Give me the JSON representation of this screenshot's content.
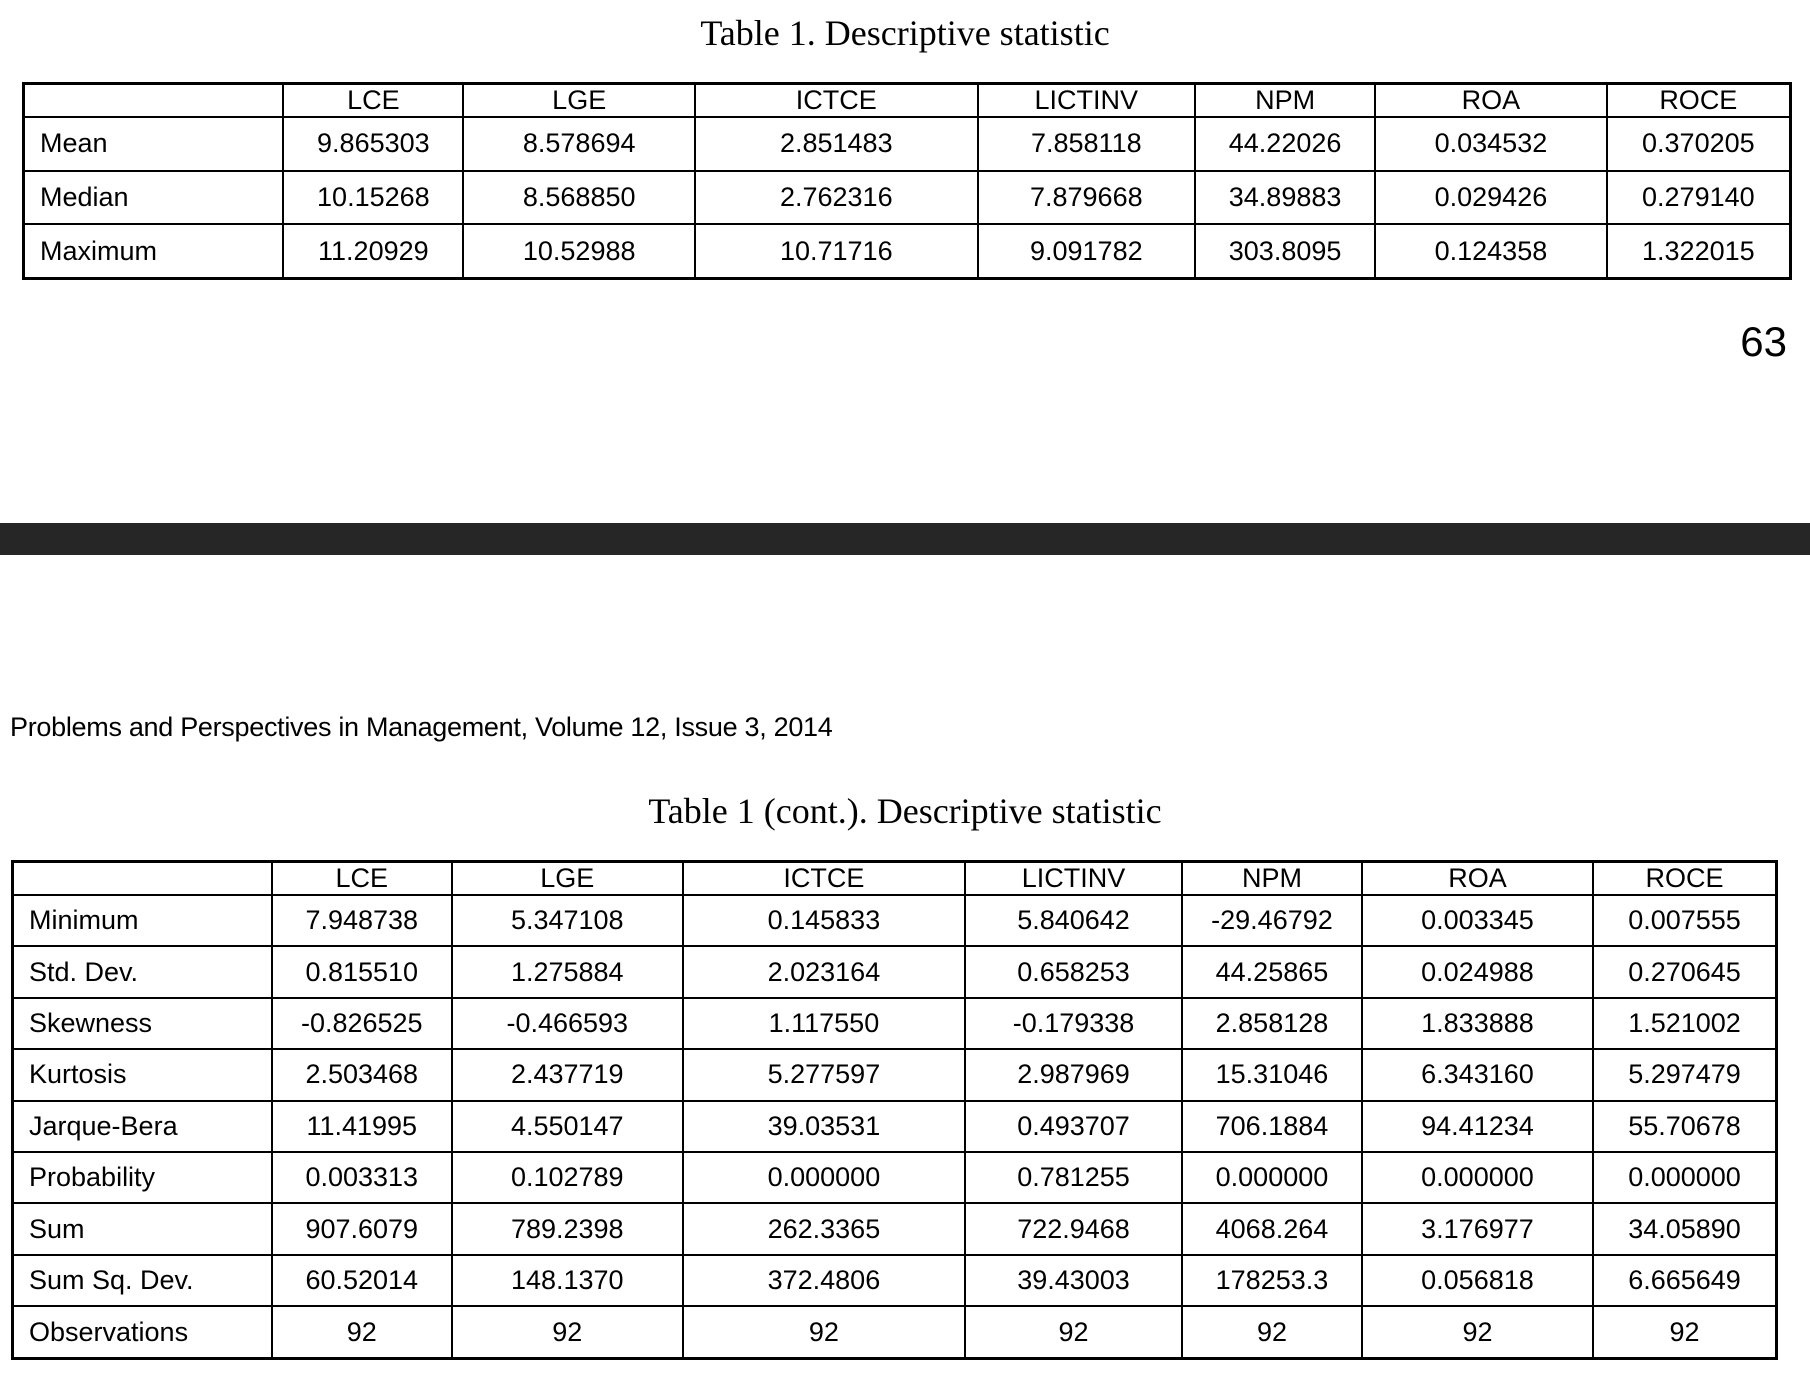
{
  "colors": {
    "separator_bar": "#262626",
    "text": "#000000",
    "background": "#ffffff"
  },
  "page_top": {
    "table_title": "Table 1. Descriptive statistic",
    "page_number": "63",
    "table": {
      "column_headers": [
        "",
        "LCE",
        "LGE",
        "ICTCE",
        "LICTINV",
        "NPM",
        "ROA",
        "ROCE"
      ],
      "rows": [
        {
          "label": "Mean",
          "values": [
            "9.865303",
            "8.578694",
            "2.851483",
            "7.858118",
            "44.22026",
            "0.034532",
            "0.370205"
          ]
        },
        {
          "label": "Median",
          "values": [
            "10.15268",
            "8.568850",
            "2.762316",
            "7.879668",
            "34.89883",
            "0.029426",
            "0.279140"
          ]
        },
        {
          "label": "Maximum",
          "values": [
            "11.20929",
            "10.52988",
            "10.71716",
            "9.091782",
            "303.8095",
            "0.124358",
            "1.322015"
          ]
        }
      ]
    }
  },
  "page_bottom": {
    "journal_header": "Problems and Perspectives in Management, Volume 12, Issue 3, 2014",
    "table_title": "Table 1 (cont.). Descriptive statistic",
    "table": {
      "column_headers": [
        "",
        "LCE",
        "LGE",
        "ICTCE",
        "LICTINV",
        "NPM",
        "ROA",
        "ROCE"
      ],
      "rows": [
        {
          "label": "Minimum",
          "values": [
            "7.948738",
            "5.347108",
            "0.145833",
            "5.840642",
            "-29.46792",
            "0.003345",
            "0.007555"
          ]
        },
        {
          "label": "Std. Dev.",
          "values": [
            "0.815510",
            "1.275884",
            "2.023164",
            "0.658253",
            "44.25865",
            "0.024988",
            "0.270645"
          ]
        },
        {
          "label": "Skewness",
          "values": [
            "-0.826525",
            "-0.466593",
            "1.117550",
            "-0.179338",
            "2.858128",
            "1.833888",
            "1.521002"
          ]
        },
        {
          "label": "Kurtosis",
          "values": [
            "2.503468",
            "2.437719",
            "5.277597",
            "2.987969",
            "15.31046",
            "6.343160",
            "5.297479"
          ]
        },
        {
          "label": "Jarque-Bera",
          "values": [
            "11.41995",
            "4.550147",
            "39.03531",
            "0.493707",
            "706.1884",
            "94.41234",
            "55.70678"
          ]
        },
        {
          "label": "Probability",
          "values": [
            "0.003313",
            "0.102789",
            "0.000000",
            "0.781255",
            "0.000000",
            "0.000000",
            "0.000000"
          ]
        },
        {
          "label": "Sum",
          "values": [
            "907.6079",
            "789.2398",
            "262.3365",
            "722.9468",
            "4068.264",
            "3.176977",
            "34.05890"
          ]
        },
        {
          "label": "Sum Sq. Dev.",
          "values": [
            "60.52014",
            "148.1370",
            "372.4806",
            "39.43003",
            "178253.3",
            "0.056818",
            "6.665649"
          ]
        },
        {
          "label": "Observations",
          "values": [
            "92",
            "92",
            "92",
            "92",
            "92",
            "92",
            "92"
          ]
        }
      ]
    }
  }
}
